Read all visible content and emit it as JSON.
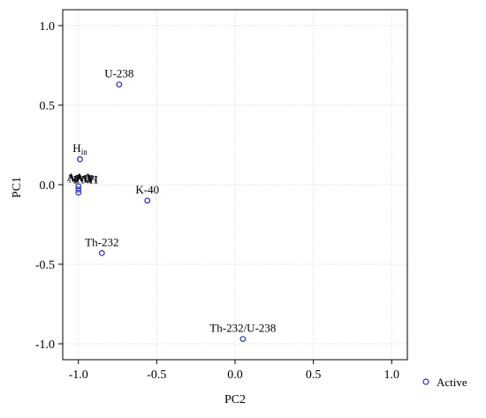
{
  "chart_data": {
    "type": "scatter",
    "title": "",
    "xlabel": "PC2",
    "ylabel": "PC1",
    "xlim": [
      -1.1,
      1.1
    ],
    "ylim": [
      -1.1,
      1.1
    ],
    "x_ticks": [
      -1.0,
      -0.5,
      0.0,
      0.5,
      1.0
    ],
    "y_ticks": [
      1.0,
      0.5,
      0.0,
      -0.5,
      -1.0
    ],
    "x_tick_labels": [
      "-1.0",
      "-0.5",
      "0.0",
      "0.5",
      "1.0"
    ],
    "y_tick_labels": [
      "1.0",
      "0.5",
      "0.0",
      "-0.5",
      "-1.0"
    ],
    "grid": true,
    "legend": {
      "position": "bottom-right",
      "entries": [
        "Active"
      ]
    },
    "marker_color": "#2a2ab8",
    "series": [
      {
        "name": "Active",
        "points": [
          {
            "x": -0.74,
            "y": 0.63,
            "label": "U-238"
          },
          {
            "x": -0.99,
            "y": 0.16,
            "label": "Hin"
          },
          {
            "x": -0.56,
            "y": -0.1,
            "label": "K-40"
          },
          {
            "x": -0.85,
            "y": -0.43,
            "label": "Th-232"
          },
          {
            "x": 0.05,
            "y": -0.97,
            "label": "Th-232/U-238"
          },
          {
            "x": -1.0,
            "y": -0.03,
            "label": ""
          },
          {
            "x": -1.0,
            "y": -0.05,
            "label": ""
          },
          {
            "x": -1.0,
            "y": -0.01,
            "label": ""
          }
        ]
      }
    ]
  }
}
